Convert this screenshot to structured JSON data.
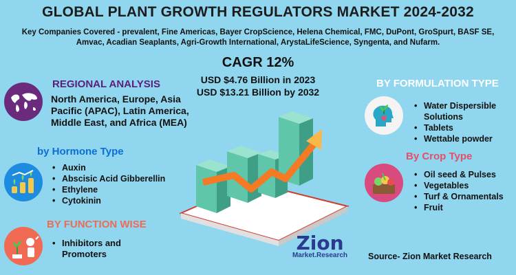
{
  "title": "GLOBAL PLANT GROWTH REGULATORS MARKET 2024-2032",
  "companies": "Key Companies Covered -  prevalent, Fine Americas, Bayer CropScience, Helena Chemical, FMC, DuPont, GroSpurt, BASF SE, Amvac, Acadian Seaplants, Agri-Growth International, ArystaLifeScience, Syngenta, and Nufarm.",
  "cagr": "CAGR 12%",
  "value_2023": "USD $4.76 Billion  in 2023",
  "value_2032": "USD $13.21 Billion  by 2032",
  "regional": {
    "heading": "REGIONAL ANALYSIS",
    "text": "North America, Europe, Asia Pacific (APAC), Latin America, Middle East, and Africa (MEA)",
    "icon": "world-map-icon"
  },
  "hormone": {
    "heading": "by Hormone Type",
    "items": [
      "Auxin",
      "Abscisic Acid Gibberellin",
      "Ethylene",
      "Cytokinin"
    ],
    "icon": "growth-coins-icon"
  },
  "function": {
    "heading": "BY FUNCTION WISE",
    "items": [
      "Inhibitors and\n Promoters"
    ],
    "icon": "plant-tools-icon"
  },
  "formulation": {
    "heading": "BY FORMULATION TYPE",
    "items": [
      "Water Dispersible\nSolutions",
      "Tablets",
      "Wettable powder"
    ],
    "icon": "head-plant-icon"
  },
  "crop": {
    "heading": "By Crop Type",
    "items": [
      "Oil seed & Pulses",
      "Vegetables",
      "Turf & Ornamentals",
      "Fruit"
    ],
    "icon": "vegetables-icon"
  },
  "logo": {
    "brand": "Zion",
    "sub": "Market.Research"
  },
  "source": "Source- Zion Market Research",
  "colors": {
    "background": "#8fd6ee",
    "heading_purple": "#5a1f7a",
    "heading_blue": "#0b6fd6",
    "heading_red": "#e2506a",
    "bar_teal": "#5fc6a9",
    "arrow_orange": "#f47a24",
    "circle_purple": "#6a2b7c",
    "circle_blue": "#1c8be0",
    "circle_pink": "#d94a7e"
  }
}
